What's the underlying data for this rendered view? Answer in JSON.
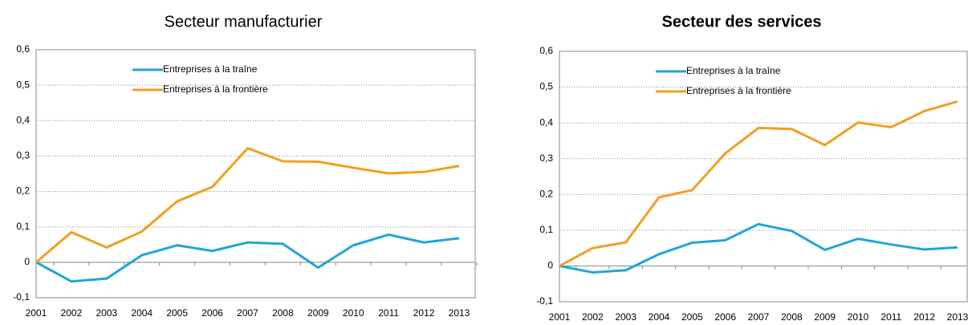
{
  "chart_data": [
    {
      "type": "line",
      "title": "Secteur manufacturier",
      "categories": [
        "2001",
        "2002",
        "2003",
        "2004",
        "2005",
        "2006",
        "2007",
        "2008",
        "2009",
        "2010",
        "2011",
        "2012",
        "2013"
      ],
      "series": [
        {
          "name": "Entreprises à la traîne",
          "color": "#1ea6d8",
          "values": [
            0,
            -0.054,
            -0.046,
            0.02,
            0.048,
            0.032,
            0.056,
            0.052,
            -0.015,
            0.048,
            0.078,
            0.056,
            0.068
          ]
        },
        {
          "name": "Entreprises à la frontière",
          "color": "#f0a020",
          "values": [
            0,
            0.085,
            0.042,
            0.087,
            0.172,
            0.213,
            0.322,
            0.285,
            0.284,
            0.267,
            0.251,
            0.255,
            0.272
          ]
        }
      ],
      "ylim": [
        -0.1,
        0.6
      ],
      "yticks": [
        {
          "value": -0.1,
          "label": "-0,1"
        },
        0,
        {
          "value": 0.1,
          "label": "0,1"
        },
        {
          "value": 0.2,
          "label": "0,2"
        },
        {
          "value": 0.3,
          "label": "0,3"
        },
        {
          "value": 0.4,
          "label": "0,4"
        },
        {
          "value": 0.5,
          "label": "0,5"
        },
        {
          "value": 0.6,
          "label": "0,6"
        }
      ],
      "grid": true,
      "legend": "upper-left"
    },
    {
      "type": "line",
      "title": "Secteur des services",
      "categories": [
        "2001",
        "2002",
        "2003",
        "2004",
        "2005",
        "2006",
        "2007",
        "2008",
        "2009",
        "2010",
        "2011",
        "2012",
        "2013"
      ],
      "series": [
        {
          "name": "Entreprises à la traîne",
          "color": "#1ea6d8",
          "values": [
            0,
            -0.018,
            -0.012,
            0.033,
            0.065,
            0.072,
            0.117,
            0.098,
            0.045,
            0.076,
            0.06,
            0.046,
            0.052
          ]
        },
        {
          "name": "Entreprises à la frontière",
          "color": "#f0a020",
          "values": [
            0,
            0.05,
            0.066,
            0.192,
            0.212,
            0.315,
            0.386,
            0.383,
            0.338,
            0.401,
            0.388,
            0.433,
            0.46
          ]
        }
      ],
      "ylim": [
        -0.1,
        0.6
      ],
      "yticks": [
        {
          "value": -0.1,
          "label": "-0,1"
        },
        0,
        {
          "value": 0.1,
          "label": "0,1"
        },
        {
          "value": 0.2,
          "label": "0,2"
        },
        {
          "value": 0.3,
          "label": "0,3"
        },
        {
          "value": 0.4,
          "label": "0,4"
        },
        {
          "value": 0.5,
          "label": "0,5"
        },
        {
          "value": 0.6,
          "label": "0,6"
        }
      ],
      "grid": true,
      "legend": "upper-left"
    }
  ]
}
